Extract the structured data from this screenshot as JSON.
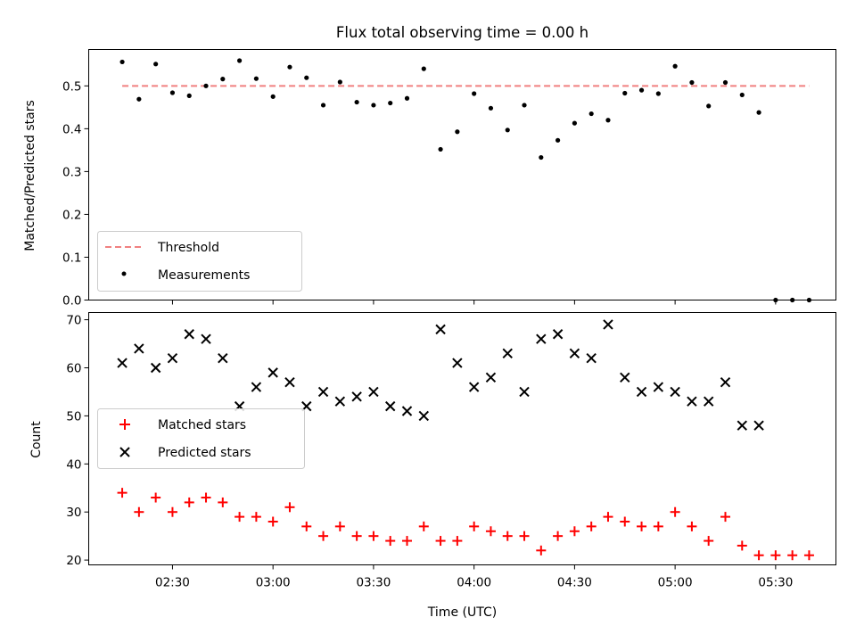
{
  "chart_data": [
    {
      "panel": "top",
      "type": "scatter",
      "title": "Flux total observing time = 0.00 h",
      "ylabel": "Matched/Predicted stars",
      "ylim": [
        0,
        0.585
      ],
      "yticks": [
        "0.0",
        "0.1",
        "0.2",
        "0.3",
        "0.4",
        "0.5"
      ],
      "threshold": {
        "name": "Threshold",
        "value": 0.5,
        "x_start": "02:15",
        "x_end": "05:40",
        "color": "#f08080"
      },
      "legend_position": "lower-left",
      "series": [
        {
          "name": "Measurements",
          "color": "#000000",
          "points": [
            [
              "02:15",
              0.556
            ],
            [
              "02:20",
              0.469
            ],
            [
              "02:25",
              0.551
            ],
            [
              "02:30",
              0.484
            ],
            [
              "02:35",
              0.477
            ],
            [
              "02:40",
              0.5
            ],
            [
              "02:45",
              0.516
            ],
            [
              "02:50",
              0.559
            ],
            [
              "02:55",
              0.517
            ],
            [
              "03:00",
              0.475
            ],
            [
              "03:05",
              0.544
            ],
            [
              "03:10",
              0.519
            ],
            [
              "03:15",
              0.455
            ],
            [
              "03:20",
              0.509
            ],
            [
              "03:25",
              0.462
            ],
            [
              "03:30",
              0.455
            ],
            [
              "03:35",
              0.46
            ],
            [
              "03:40",
              0.471
            ],
            [
              "03:45",
              0.54
            ],
            [
              "03:50",
              0.352
            ],
            [
              "03:55",
              0.393
            ],
            [
              "04:00",
              0.482
            ],
            [
              "04:05",
              0.448
            ],
            [
              "04:10",
              0.397
            ],
            [
              "04:15",
              0.455
            ],
            [
              "04:20",
              0.333
            ],
            [
              "04:25",
              0.373
            ],
            [
              "04:30",
              0.413
            ],
            [
              "04:35",
              0.435
            ],
            [
              "04:40",
              0.42
            ],
            [
              "04:45",
              0.483
            ],
            [
              "04:50",
              0.49
            ],
            [
              "04:55",
              0.482
            ],
            [
              "05:00",
              0.546
            ],
            [
              "05:05",
              0.508
            ],
            [
              "05:10",
              0.453
            ],
            [
              "05:15",
              0.508
            ],
            [
              "05:20",
              0.479
            ],
            [
              "05:25",
              0.438
            ],
            [
              "05:30",
              0.0
            ],
            [
              "05:35",
              0.0
            ],
            [
              "05:40",
              0.0
            ]
          ]
        }
      ]
    },
    {
      "panel": "bottom",
      "type": "scatter",
      "xlabel": "Time (UTC)",
      "ylabel": "Count",
      "ylim": [
        19,
        71.5
      ],
      "yticks": [
        "20",
        "30",
        "40",
        "50",
        "60",
        "70"
      ],
      "xlim": [
        "02:05",
        "05:48"
      ],
      "xticks": [
        "02:30",
        "03:00",
        "03:30",
        "04:00",
        "04:30",
        "05:00",
        "05:30"
      ],
      "legend_position": "center-left",
      "series": [
        {
          "name": "Matched stars",
          "marker": "+",
          "color": "#ff0000",
          "points": [
            [
              "02:15",
              34
            ],
            [
              "02:20",
              30
            ],
            [
              "02:25",
              33
            ],
            [
              "02:30",
              30
            ],
            [
              "02:35",
              32
            ],
            [
              "02:40",
              33
            ],
            [
              "02:45",
              32
            ],
            [
              "02:50",
              29
            ],
            [
              "02:55",
              29
            ],
            [
              "03:00",
              28
            ],
            [
              "03:05",
              31
            ],
            [
              "03:10",
              27
            ],
            [
              "03:15",
              25
            ],
            [
              "03:20",
              27
            ],
            [
              "03:25",
              25
            ],
            [
              "03:30",
              25
            ],
            [
              "03:35",
              24
            ],
            [
              "03:40",
              24
            ],
            [
              "03:45",
              27
            ],
            [
              "03:50",
              24
            ],
            [
              "03:55",
              24
            ],
            [
              "04:00",
              27
            ],
            [
              "04:05",
              26
            ],
            [
              "04:10",
              25
            ],
            [
              "04:15",
              25
            ],
            [
              "04:20",
              22
            ],
            [
              "04:25",
              25
            ],
            [
              "04:30",
              26
            ],
            [
              "04:35",
              27
            ],
            [
              "04:40",
              29
            ],
            [
              "04:45",
              28
            ],
            [
              "04:50",
              27
            ],
            [
              "04:55",
              27
            ],
            [
              "05:00",
              30
            ],
            [
              "05:05",
              27
            ],
            [
              "05:10",
              24
            ],
            [
              "05:15",
              29
            ],
            [
              "05:20",
              23
            ],
            [
              "05:25",
              21
            ],
            [
              "05:30",
              21
            ],
            [
              "05:35",
              21
            ],
            [
              "05:40",
              21
            ]
          ]
        },
        {
          "name": "Predicted stars",
          "marker": "x",
          "color": "#000000",
          "points": [
            [
              "02:15",
              61
            ],
            [
              "02:20",
              64
            ],
            [
              "02:25",
              60
            ],
            [
              "02:30",
              62
            ],
            [
              "02:35",
              67
            ],
            [
              "02:40",
              66
            ],
            [
              "02:45",
              62
            ],
            [
              "02:50",
              52
            ],
            [
              "02:55",
              56
            ],
            [
              "03:00",
              59
            ],
            [
              "03:05",
              57
            ],
            [
              "03:10",
              52
            ],
            [
              "03:15",
              55
            ],
            [
              "03:20",
              53
            ],
            [
              "03:25",
              54
            ],
            [
              "03:30",
              55
            ],
            [
              "03:35",
              52
            ],
            [
              "03:40",
              51
            ],
            [
              "03:45",
              50
            ],
            [
              "03:50",
              68
            ],
            [
              "03:55",
              61
            ],
            [
              "04:00",
              56
            ],
            [
              "04:05",
              58
            ],
            [
              "04:10",
              63
            ],
            [
              "04:15",
              55
            ],
            [
              "04:20",
              66
            ],
            [
              "04:25",
              67
            ],
            [
              "04:30",
              63
            ],
            [
              "04:35",
              62
            ],
            [
              "04:40",
              69
            ],
            [
              "04:45",
              58
            ],
            [
              "04:50",
              55
            ],
            [
              "04:55",
              56
            ],
            [
              "05:00",
              55
            ],
            [
              "05:05",
              53
            ],
            [
              "05:10",
              53
            ],
            [
              "05:15",
              57
            ],
            [
              "05:20",
              48
            ],
            [
              "05:25",
              48
            ]
          ]
        }
      ]
    }
  ]
}
